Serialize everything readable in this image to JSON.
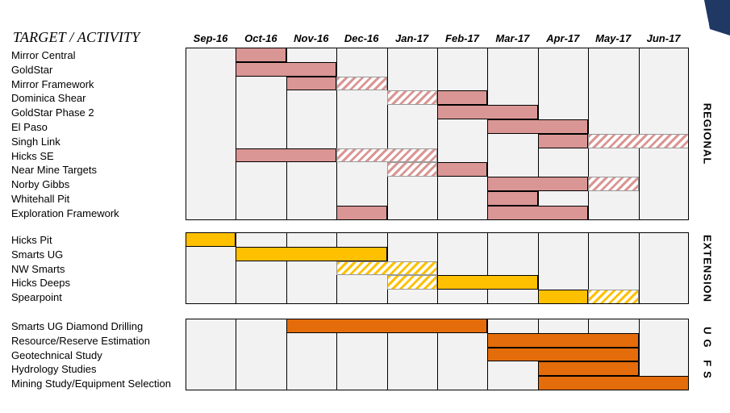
{
  "header": {
    "title": "TARGET / ACTIVITY"
  },
  "months": [
    "Sep-16",
    "Oct-16",
    "Nov-16",
    "Dec-16",
    "Jan-17",
    "Feb-17",
    "Mar-17",
    "Apr-17",
    "May-17",
    "Jun-17"
  ],
  "colors": {
    "regional": "#d99694",
    "extension": "#ffc000",
    "ugfs": "#e46c0a",
    "grid": "#f2f2f2"
  },
  "sections": [
    {
      "name": "REGIONAL",
      "color": "#d99694",
      "rows": [
        {
          "label": "Mirror Central",
          "bars": [
            {
              "start": 1,
              "span": 1,
              "hatched": false
            }
          ]
        },
        {
          "label": "GoldStar",
          "bars": [
            {
              "start": 1,
              "span": 2,
              "hatched": false
            }
          ]
        },
        {
          "label": "Mirror Framework",
          "bars": [
            {
              "start": 2,
              "span": 1,
              "hatched": false
            },
            {
              "start": 3,
              "span": 1,
              "hatched": true
            }
          ]
        },
        {
          "label": "Dominica Shear",
          "bars": [
            {
              "start": 4,
              "span": 1,
              "hatched": true
            },
            {
              "start": 5,
              "span": 1,
              "hatched": false
            }
          ]
        },
        {
          "label": "GoldStar Phase 2",
          "bars": [
            {
              "start": 5,
              "span": 2,
              "hatched": false
            }
          ]
        },
        {
          "label": "El Paso",
          "bars": [
            {
              "start": 6,
              "span": 2,
              "hatched": false
            }
          ]
        },
        {
          "label": "Singh Link",
          "bars": [
            {
              "start": 7,
              "span": 1,
              "hatched": false
            },
            {
              "start": 8,
              "span": 2,
              "hatched": true
            }
          ]
        },
        {
          "label": "Hicks SE",
          "bars": [
            {
              "start": 1,
              "span": 2,
              "hatched": false
            },
            {
              "start": 3,
              "span": 2,
              "hatched": true
            }
          ]
        },
        {
          "label": "Near Mine Targets",
          "bars": [
            {
              "start": 4,
              "span": 1,
              "hatched": true
            },
            {
              "start": 5,
              "span": 1,
              "hatched": false
            }
          ]
        },
        {
          "label": "Norby Gibbs",
          "bars": [
            {
              "start": 6,
              "span": 2,
              "hatched": false
            },
            {
              "start": 8,
              "span": 1,
              "hatched": true
            }
          ]
        },
        {
          "label": "Whitehall Pit",
          "bars": [
            {
              "start": 6,
              "span": 1,
              "hatched": false
            }
          ]
        },
        {
          "label": "Exploration Framework",
          "bars": [
            {
              "start": 3,
              "span": 1,
              "hatched": false
            },
            {
              "start": 6,
              "span": 2,
              "hatched": false
            }
          ]
        }
      ]
    },
    {
      "name": "EXTENSION",
      "color": "#ffc000",
      "rows": [
        {
          "label": "Hicks Pit",
          "bars": [
            {
              "start": 0,
              "span": 1,
              "hatched": false
            }
          ]
        },
        {
          "label": "Smarts UG",
          "bars": [
            {
              "start": 1,
              "span": 3,
              "hatched": false
            }
          ]
        },
        {
          "label": "NW Smarts",
          "bars": [
            {
              "start": 3,
              "span": 2,
              "hatched": true
            }
          ]
        },
        {
          "label": "Hicks Deeps",
          "bars": [
            {
              "start": 4,
              "span": 1,
              "hatched": true
            },
            {
              "start": 5,
              "span": 2,
              "hatched": false
            }
          ]
        },
        {
          "label": "Spearpoint",
          "bars": [
            {
              "start": 7,
              "span": 1,
              "hatched": false
            },
            {
              "start": 8,
              "span": 1,
              "hatched": true
            }
          ]
        }
      ]
    },
    {
      "name": "UG FS",
      "color": "#e46c0a",
      "rows": [
        {
          "label": "Smarts UG Diamond Drilling",
          "bars": [
            {
              "start": 2,
              "span": 4,
              "hatched": false
            }
          ]
        },
        {
          "label": "Resource/Reserve Estimation",
          "bars": [
            {
              "start": 6,
              "span": 3,
              "hatched": false
            }
          ]
        },
        {
          "label": "Geotechnical Study",
          "bars": [
            {
              "start": 6,
              "span": 3,
              "hatched": false
            }
          ]
        },
        {
          "label": "Hydrology Studies",
          "bars": [
            {
              "start": 7,
              "span": 2,
              "hatched": false
            }
          ]
        },
        {
          "label": "Mining Study/Equipment Selection",
          "bars": [
            {
              "start": 7,
              "span": 3,
              "hatched": false
            }
          ]
        }
      ]
    }
  ]
}
